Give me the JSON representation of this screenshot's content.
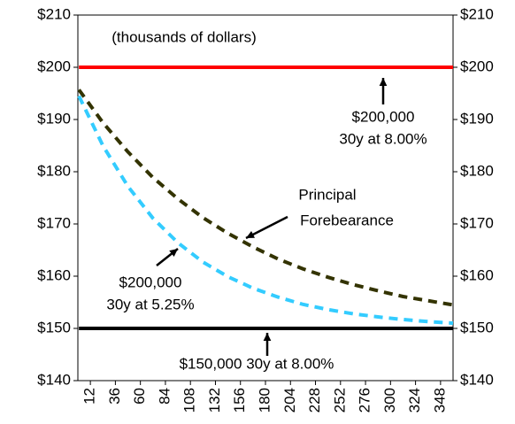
{
  "chart_data": {
    "type": "line",
    "annotations": [
      "(thousands of dollars)",
      "$200,000",
      "30y at 8.00%",
      "Principal",
      "Forebearance",
      "$200,000",
      "30y at 5.25%",
      "$150,000 30y at 8.00%"
    ],
    "xlim": [
      0,
      360
    ],
    "xticks": [
      12,
      36,
      60,
      84,
      108,
      132,
      156,
      180,
      204,
      228,
      252,
      276,
      300,
      324,
      348
    ],
    "ylim": [
      140,
      210
    ],
    "yticks": [
      {
        "value": 140,
        "label": "$140"
      },
      {
        "value": 150,
        "label": "$150"
      },
      {
        "value": 160,
        "label": "$160"
      },
      {
        "value": 170,
        "label": "$170"
      },
      {
        "value": 180,
        "label": "$180"
      },
      {
        "value": 190,
        "label": "$190"
      },
      {
        "value": 200,
        "label": "$200"
      },
      {
        "value": 210,
        "label": "$210"
      }
    ],
    "y2lim": [
      140,
      210
    ],
    "y2ticks": [
      {
        "value": 140,
        "label": "$140"
      },
      {
        "value": 150,
        "label": "$150"
      },
      {
        "value": 160,
        "label": "$160"
      },
      {
        "value": 170,
        "label": "$170"
      },
      {
        "value": 180,
        "label": "$180"
      },
      {
        "value": 190,
        "label": "$190"
      },
      {
        "value": 200,
        "label": "$200"
      },
      {
        "value": 210,
        "label": "$210"
      }
    ],
    "series": [
      {
        "color": "#ff0000",
        "dashed": false,
        "x": [
          1,
          360
        ],
        "values": [
          200,
          200
        ]
      },
      {
        "color": "#000000",
        "dashed": false,
        "x": [
          1,
          360
        ],
        "values": [
          150,
          150
        ]
      },
      {
        "color": "#333300",
        "dashed": true,
        "x": [
          1,
          24,
          48,
          72,
          96,
          120,
          144,
          168,
          192,
          216,
          240,
          264,
          288,
          312,
          336,
          360
        ],
        "values": [
          195.7,
          189.4,
          183.8,
          178.9,
          174.8,
          171.2,
          168.2,
          165.6,
          163.3,
          161.4,
          159.8,
          158.4,
          157.2,
          156.1,
          155.3,
          154.5
        ]
      },
      {
        "color": "#33ccff",
        "dashed": true,
        "x": [
          1,
          24,
          48,
          72,
          96,
          120,
          144,
          168,
          192,
          216,
          240,
          264,
          288,
          312,
          336,
          360
        ],
        "values": [
          194.5,
          185.0,
          177.2,
          171.1,
          166.4,
          162.7,
          159.9,
          157.7,
          156.0,
          154.6,
          153.6,
          152.8,
          152.2,
          151.7,
          151.3,
          151.0
        ]
      }
    ]
  }
}
